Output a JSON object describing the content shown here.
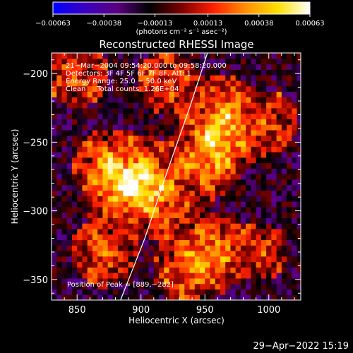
{
  "chart_data": {
    "type": "heatmap",
    "title": "Reconstructed RHESSI Image",
    "xlabel": "Heliocentric X (arcsec)",
    "ylabel": "Heliocentric Y (arcsec)",
    "xlim": [
      830,
      1025
    ],
    "ylim": [
      -365,
      -185
    ],
    "x_ticks": [
      850,
      900,
      950,
      1000
    ],
    "y_ticks": [
      -200,
      -250,
      -300,
      -350
    ],
    "x_tick_labels": [
      "850",
      "900",
      "950",
      "1000"
    ],
    "y_tick_labels": [
      "−200",
      "−250",
      "−300",
      "−350"
    ],
    "colorbar": {
      "ticks": [
        -0.00063,
        -0.00038,
        -0.00013,
        0.00013,
        0.00038,
        0.00063
      ],
      "tick_labels": [
        "−0.00063",
        "−0.00038",
        "−0.00013",
        "0.00013",
        "0.00038",
        "0.00063"
      ],
      "range": [
        -0.00063,
        0.00063
      ],
      "units_label": "(photons cm⁻² s⁻¹ asec⁻²)",
      "colormap": [
        "#0000ff",
        "#3a00c0",
        "#5a0080",
        "#000000",
        "#7a0000",
        "#ff2000",
        "#ff9000",
        "#ffe000",
        "#ffffff"
      ]
    },
    "annotations": [
      "21−Mar−2004 09:54:20.000 to 09:58:20.000",
      "Detectors: 3F 4F 5F 6F 7F 8F, Att: 1",
      "Energy Range: 25.0 − 50.0 keV",
      "Clean     Total counts: 1.26E+04"
    ],
    "peak_label": "Position of Peak = [889,−282]",
    "peak": [
      889,
      -282
    ],
    "limb_points": [
      [
        884,
        -365
      ],
      [
        903,
        -320
      ],
      [
        921,
        -270
      ],
      [
        938,
        -225
      ],
      [
        952,
        -185
      ]
    ],
    "bright_regions": [
      {
        "x": 890,
        "y": -282,
        "amplitude": 1.0
      },
      {
        "x": 875,
        "y": -268,
        "amplitude": 0.8
      },
      {
        "x": 905,
        "y": -275,
        "amplitude": 0.7
      },
      {
        "x": 915,
        "y": -292,
        "amplitude": 0.55
      },
      {
        "x": 960,
        "y": -250,
        "amplitude": 0.85
      },
      {
        "x": 965,
        "y": -228,
        "amplitude": 0.75
      },
      {
        "x": 950,
        "y": -265,
        "amplitude": 0.6
      },
      {
        "x": 955,
        "y": -330,
        "amplitude": 0.8
      },
      {
        "x": 935,
        "y": -345,
        "amplitude": 0.6
      },
      {
        "x": 870,
        "y": -330,
        "amplitude": 0.6
      },
      {
        "x": 850,
        "y": -200,
        "amplitude": 0.55
      },
      {
        "x": 920,
        "y": -205,
        "amplitude": 0.5
      },
      {
        "x": 1000,
        "y": -235,
        "amplitude": 0.4
      },
      {
        "x": 995,
        "y": -330,
        "amplitude": 0.35
      }
    ],
    "grid": false,
    "legend": "none"
  },
  "footer": {
    "date": "29−Apr−2022 15:19"
  }
}
